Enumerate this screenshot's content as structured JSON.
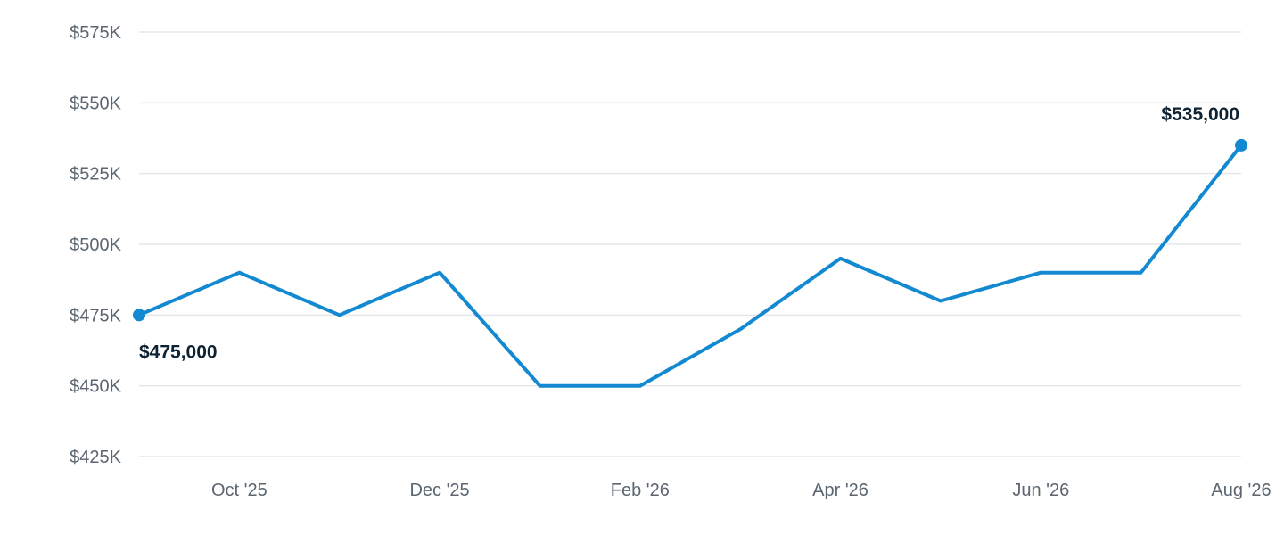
{
  "chart_data": {
    "type": "line",
    "title": "",
    "xlabel": "",
    "ylabel": "",
    "ylim": [
      425000,
      575000
    ],
    "y_ticks": [
      {
        "value": 425000,
        "label": "$425K"
      },
      {
        "value": 450000,
        "label": "$450K"
      },
      {
        "value": 475000,
        "label": "$475K"
      },
      {
        "value": 500000,
        "label": "$500K"
      },
      {
        "value": 525000,
        "label": "$525K"
      },
      {
        "value": 550000,
        "label": "$550K"
      },
      {
        "value": 575000,
        "label": "$575K"
      }
    ],
    "x": [
      "2025-09",
      "2025-10",
      "2025-11",
      "2025-12",
      "2026-01",
      "2026-02",
      "2026-03",
      "2026-04",
      "2026-05",
      "2026-06",
      "2026-07",
      "2026-08"
    ],
    "x_ticks": [
      {
        "x": "2025-10",
        "label": "Oct '25"
      },
      {
        "x": "2025-12",
        "label": "Dec '25"
      },
      {
        "x": "2026-02",
        "label": "Feb '26"
      },
      {
        "x": "2026-04",
        "label": "Apr '26"
      },
      {
        "x": "2026-06",
        "label": "Jun '26"
      },
      {
        "x": "2026-08",
        "label": "Aug '26"
      }
    ],
    "series": [
      {
        "values": [
          475000,
          490000,
          475000,
          490000,
          450000,
          450000,
          470000,
          495000,
          480000,
          490000,
          490000,
          535000
        ]
      }
    ],
    "color": "#1289d0",
    "grid": true,
    "legend": "none",
    "annotations": [
      {
        "x": "2025-09",
        "label": "$475,000",
        "placement": "below"
      },
      {
        "x": "2026-08",
        "label": "$535,000",
        "placement": "above"
      }
    ]
  }
}
